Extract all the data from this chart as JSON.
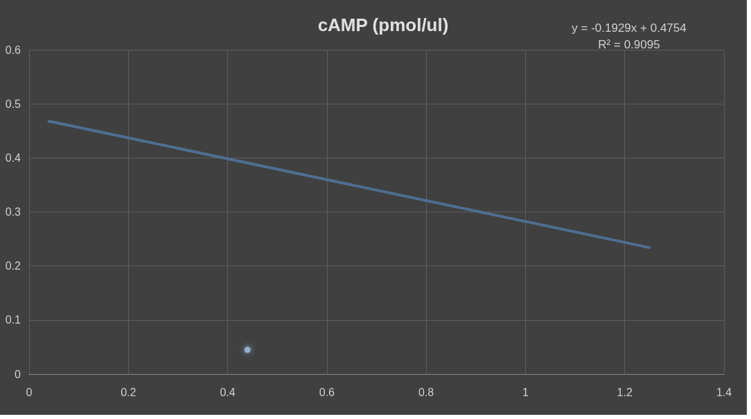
{
  "chart_data": {
    "type": "scatter",
    "title": "cAMP (pmol/ul)",
    "annotations": [
      "y = -0.1929x + 0.4754",
      "R² = 0.9095"
    ],
    "series": [
      {
        "color": "#9dc3e6",
        "x": [
          0.44
        ],
        "values": [
          0.045
        ],
        "marker": "circle"
      },
      {
        "type": "line",
        "color": "#4e6f92",
        "x": [
          0.04,
          1.25
        ],
        "values": [
          0.468,
          0.234
        ],
        "marker": "none"
      }
    ],
    "xlim": [
      0,
      1.4
    ],
    "xticks": [
      0,
      0.2,
      0.4,
      0.6,
      0.8,
      1,
      1.2,
      1.4
    ],
    "ylim": [
      0,
      0.6
    ],
    "yticks": [
      0,
      0.1,
      0.2,
      0.3,
      0.4,
      0.5,
      0.6
    ],
    "grid": true,
    "line_style": "solid"
  }
}
